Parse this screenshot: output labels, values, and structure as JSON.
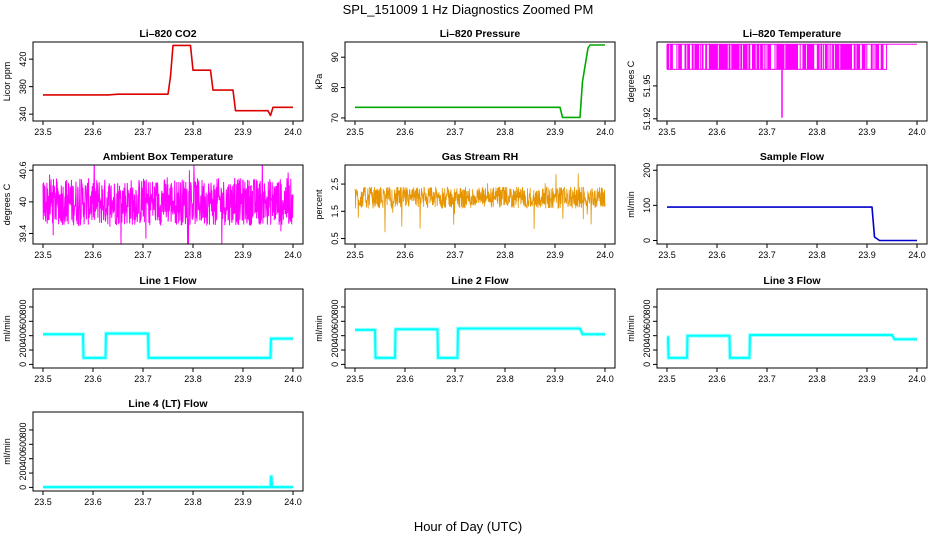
{
  "figure": {
    "title": "SPL_151009  1 Hz Diagnostics Zoomed PM",
    "xlabel": "Hour of Day (UTC)"
  },
  "chart_data": [
    {
      "type": "line",
      "title": "Li–820 CO2",
      "ylabel": "Licor ppm",
      "color": "#dd0000",
      "xlim": [
        23.5,
        24.0
      ],
      "xticks": [
        23.5,
        23.6,
        23.7,
        23.8,
        23.9,
        24.0
      ],
      "ylim": [
        330,
        445
      ],
      "yticks": [
        340,
        380,
        420
      ],
      "series": [
        {
          "x": [
            23.5,
            23.63,
            23.65,
            23.75,
            23.755,
            23.76,
            23.795,
            23.8,
            23.835,
            23.84,
            23.88,
            23.885,
            23.95,
            23.955,
            23.96,
            24.0
          ],
          "y": [
            368,
            368,
            369,
            369,
            395,
            440,
            440,
            404,
            404,
            375,
            375,
            345,
            345,
            338,
            350,
            350
          ]
        }
      ]
    },
    {
      "type": "line",
      "title": "Li–820 Pressure",
      "ylabel": "kPa",
      "color": "#00aa00",
      "xlim": [
        23.5,
        24.0
      ],
      "xticks": [
        23.5,
        23.6,
        23.7,
        23.8,
        23.9,
        24.0
      ],
      "ylim": [
        69,
        95
      ],
      "yticks": [
        70,
        80,
        90
      ],
      "series": [
        {
          "x": [
            23.5,
            23.91,
            23.915,
            23.95,
            23.955,
            23.962,
            23.966,
            23.97,
            24.0
          ],
          "y": [
            73.5,
            73.5,
            70.2,
            70.2,
            82,
            89,
            93,
            94,
            94
          ]
        }
      ]
    },
    {
      "type": "line",
      "title": "Li–820 Temperature",
      "ylabel": "degrees C",
      "color": "#ff00ff",
      "xlim": [
        23.5,
        24.0
      ],
      "xticks": [
        23.5,
        23.6,
        23.7,
        23.8,
        23.9,
        24.0
      ],
      "ylim": [
        51.918,
        51.99
      ],
      "yticks": [
        51.92,
        51.95
      ],
      "series": [
        {
          "x": [
            23.5,
            23.94,
            24.0
          ],
          "y": [
            51.988,
            51.988,
            51.988
          ]
        }
      ]
    },
    {
      "type": "line",
      "title": "Ambient Box Temperature",
      "ylabel": "degrees C",
      "color": "#ff00ff",
      "xlim": [
        23.5,
        24.0
      ],
      "xticks": [
        23.5,
        23.6,
        23.7,
        23.8,
        23.9,
        24.0
      ],
      "ylim": [
        39.2,
        40.7
      ],
      "yticks": [
        39.4,
        40.0,
        40.6
      ],
      "series": [
        {
          "x": [
            23.5,
            24.0
          ],
          "y": [
            40.0,
            40.0
          ]
        }
      ]
    },
    {
      "type": "line",
      "title": "Gas Stream RH",
      "ylabel": "percent",
      "color": "#e69500",
      "xlim": [
        23.5,
        24.0
      ],
      "xticks": [
        23.5,
        23.6,
        23.7,
        23.8,
        23.9,
        24.0
      ],
      "ylim": [
        0.3,
        3.2
      ],
      "yticks": [
        0.5,
        1.5,
        2.5
      ],
      "series": [
        {
          "x": [
            23.5,
            24.0
          ],
          "y": [
            2.0,
            2.0
          ]
        }
      ]
    },
    {
      "type": "line",
      "title": "Sample Flow",
      "ylabel": "ml/min",
      "color": "#0000cc",
      "xlim": [
        23.5,
        24.0
      ],
      "xticks": [
        23.5,
        23.6,
        23.7,
        23.8,
        23.9,
        24.0
      ],
      "ylim": [
        -10,
        215
      ],
      "yticks": [
        0,
        100,
        200
      ],
      "series": [
        {
          "x": [
            23.5,
            23.91,
            23.915,
            23.925,
            24.0
          ],
          "y": [
            95,
            95,
            10,
            0,
            0
          ]
        }
      ]
    },
    {
      "type": "line",
      "title": "Line 1 Flow",
      "ylabel": "ml/min",
      "color": "#00ffff",
      "xlim": [
        23.5,
        24.0
      ],
      "xticks": [
        23.5,
        23.6,
        23.7,
        23.8,
        23.9,
        24.0
      ],
      "ylim": [
        -50,
        1050
      ],
      "yticks": [
        0,
        200,
        400,
        600,
        800
      ],
      "series": [
        {
          "x": [
            23.5,
            23.58,
            23.581,
            23.625,
            23.626,
            23.71,
            23.711,
            23.955,
            23.956,
            24.0
          ],
          "y": [
            420,
            420,
            90,
            90,
            430,
            430,
            90,
            90,
            360,
            360
          ]
        }
      ]
    },
    {
      "type": "line",
      "title": "Line 2 Flow",
      "ylabel": "ml/min",
      "color": "#00ffff",
      "xlim": [
        23.5,
        24.0
      ],
      "xticks": [
        23.5,
        23.6,
        23.7,
        23.8,
        23.9,
        24.0
      ],
      "ylim": [
        -50,
        1050
      ],
      "yticks": [
        0,
        200,
        400,
        600,
        800
      ],
      "series": [
        {
          "x": [
            23.5,
            23.54,
            23.541,
            23.58,
            23.581,
            23.665,
            23.666,
            23.705,
            23.706,
            23.95,
            23.955,
            24.0
          ],
          "y": [
            480,
            480,
            90,
            90,
            490,
            490,
            90,
            90,
            500,
            500,
            420,
            420
          ]
        }
      ]
    },
    {
      "type": "line",
      "title": "Line 3 Flow",
      "ylabel": "ml/min",
      "color": "#00ffff",
      "xlim": [
        23.5,
        24.0
      ],
      "xticks": [
        23.5,
        23.6,
        23.7,
        23.8,
        23.9,
        24.0
      ],
      "ylim": [
        -50,
        1050
      ],
      "yticks": [
        0,
        200,
        400,
        600,
        800
      ],
      "series": [
        {
          "x": [
            23.5,
            23.502,
            23.503,
            23.54,
            23.541,
            23.625,
            23.626,
            23.665,
            23.666,
            23.95,
            23.955,
            24.0
          ],
          "y": [
            380,
            380,
            90,
            90,
            400,
            400,
            90,
            90,
            410,
            410,
            350,
            350
          ]
        }
      ]
    },
    {
      "type": "line",
      "title": "Line 4 (LT) Flow",
      "ylabel": "ml/min",
      "color": "#00ffff",
      "xlim": [
        23.5,
        24.0
      ],
      "xticks": [
        23.5,
        23.6,
        23.7,
        23.8,
        23.9,
        24.0
      ],
      "ylim": [
        -50,
        1050
      ],
      "yticks": [
        0,
        200,
        400,
        600,
        800
      ],
      "series": [
        {
          "x": [
            23.5,
            23.955,
            23.956,
            23.957,
            23.958,
            24.0
          ],
          "y": [
            5,
            5,
            150,
            150,
            5,
            5
          ]
        }
      ]
    }
  ]
}
